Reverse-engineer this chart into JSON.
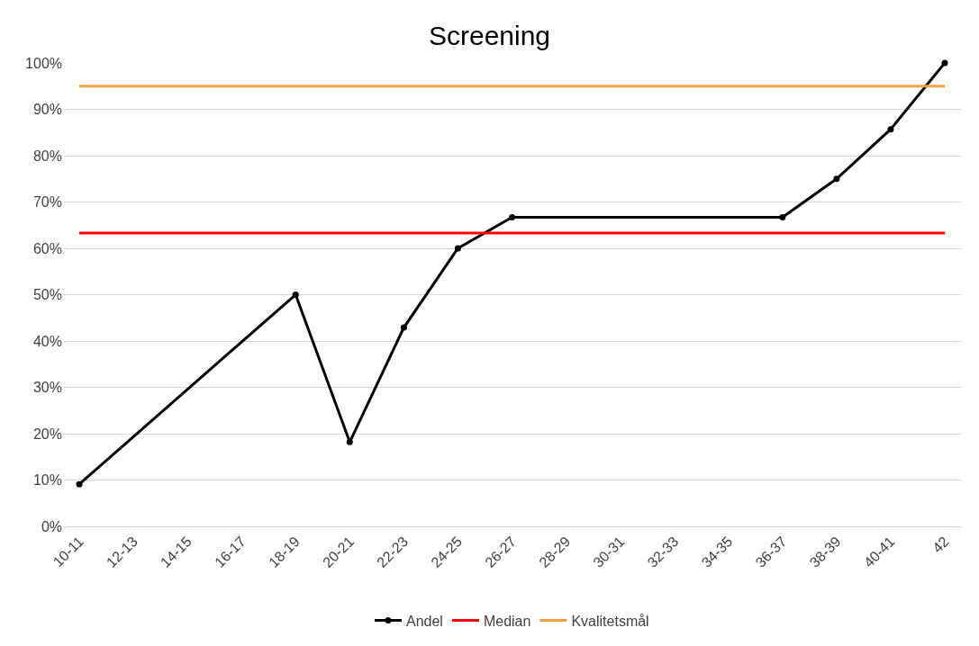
{
  "chart_data": {
    "type": "line",
    "title": "Screening",
    "categories": [
      "10-11",
      "12-13",
      "14-15",
      "16-17",
      "18-19",
      "20-21",
      "22-23",
      "24-25",
      "26-27",
      "28-29",
      "30-31",
      "32-33",
      "34-35",
      "36-37",
      "38-39",
      "40-41",
      "42"
    ],
    "series": [
      {
        "name": "Andel",
        "color": "#000000",
        "marker": "circle",
        "values": [
          9.1,
          null,
          null,
          null,
          50,
          18.2,
          42.9,
          60,
          66.7,
          null,
          null,
          null,
          null,
          66.7,
          75,
          85.7,
          100
        ]
      },
      {
        "name": "Median",
        "color": "#ff0000",
        "marker": "none",
        "values": [
          63.3,
          63.3,
          63.3,
          63.3,
          63.3,
          63.3,
          63.3,
          63.3,
          63.3,
          63.3,
          63.3,
          63.3,
          63.3,
          63.3,
          63.3,
          63.3,
          63.3
        ]
      },
      {
        "name": "Kvalitetsmål",
        "color": "#f4a040",
        "marker": "none",
        "values": [
          95,
          95,
          95,
          95,
          95,
          95,
          95,
          95,
          95,
          95,
          95,
          95,
          95,
          95,
          95,
          95,
          95
        ]
      }
    ],
    "ylim": [
      0,
      100
    ],
    "yticks": [
      {
        "value": 0,
        "label": "0%"
      },
      {
        "value": 10,
        "label": "10%"
      },
      {
        "value": 20,
        "label": "20%"
      },
      {
        "value": 30,
        "label": "30%"
      },
      {
        "value": 40,
        "label": "40%"
      },
      {
        "value": 50,
        "label": "50%"
      },
      {
        "value": 60,
        "label": "60%"
      },
      {
        "value": 70,
        "label": "70%"
      },
      {
        "value": 80,
        "label": "80%"
      },
      {
        "value": 90,
        "label": "90%"
      },
      {
        "value": 100,
        "label": "100%"
      }
    ],
    "grid": "y",
    "legend": "bottom",
    "line_style": "solid"
  }
}
